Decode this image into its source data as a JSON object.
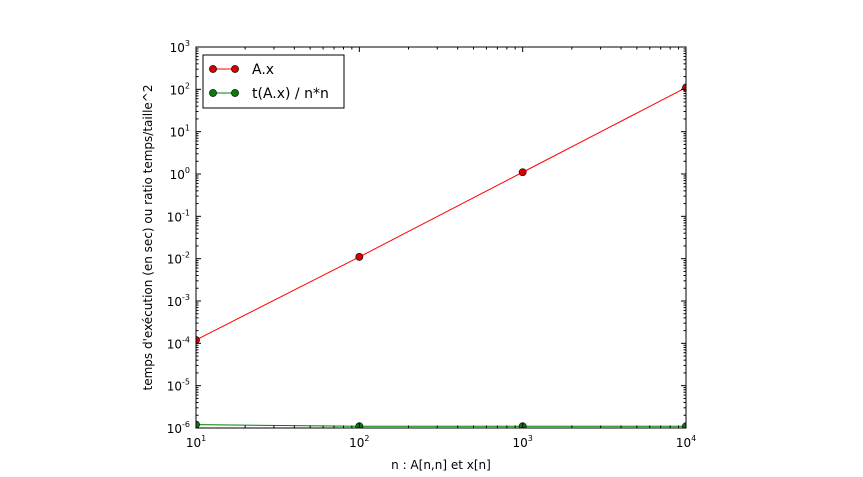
{
  "chart_data": {
    "type": "line",
    "x_scale": "log",
    "y_scale": "log",
    "xlabel": "n : A[n,n] et x[n]",
    "ylabel": "temps d'exécution (en sec) ou ratio temps/taille^2",
    "xlim": [
      10,
      10000
    ],
    "ylim": [
      1e-06,
      1000
    ],
    "x_ticks": [
      {
        "base": "10",
        "exp": "1"
      },
      {
        "base": "10",
        "exp": "2"
      },
      {
        "base": "10",
        "exp": "3"
      },
      {
        "base": "10",
        "exp": "4"
      }
    ],
    "y_ticks": [
      {
        "base": "10",
        "exp": "-6"
      },
      {
        "base": "10",
        "exp": "-5"
      },
      {
        "base": "10",
        "exp": "-4"
      },
      {
        "base": "10",
        "exp": "-3"
      },
      {
        "base": "10",
        "exp": "-2"
      },
      {
        "base": "10",
        "exp": "-1"
      },
      {
        "base": "10",
        "exp": "0"
      },
      {
        "base": "10",
        "exp": "1"
      },
      {
        "base": "10",
        "exp": "2"
      },
      {
        "base": "10",
        "exp": "3"
      }
    ],
    "grid": false,
    "legend_position": "top-left",
    "series": [
      {
        "name": "A.x",
        "color": "#ff0000",
        "marker_color": "#d40000",
        "x": [
          10,
          100,
          1000,
          10000
        ],
        "y": [
          0.00012,
          0.011,
          1.1,
          110
        ]
      },
      {
        "name": "t(A.x) / n*n",
        "color": "#008000",
        "marker_color": "#0a7a0a",
        "x": [
          10,
          100,
          1000,
          10000
        ],
        "y": [
          1.2e-06,
          1.1e-06,
          1.1e-06,
          1.1e-06
        ]
      }
    ]
  }
}
